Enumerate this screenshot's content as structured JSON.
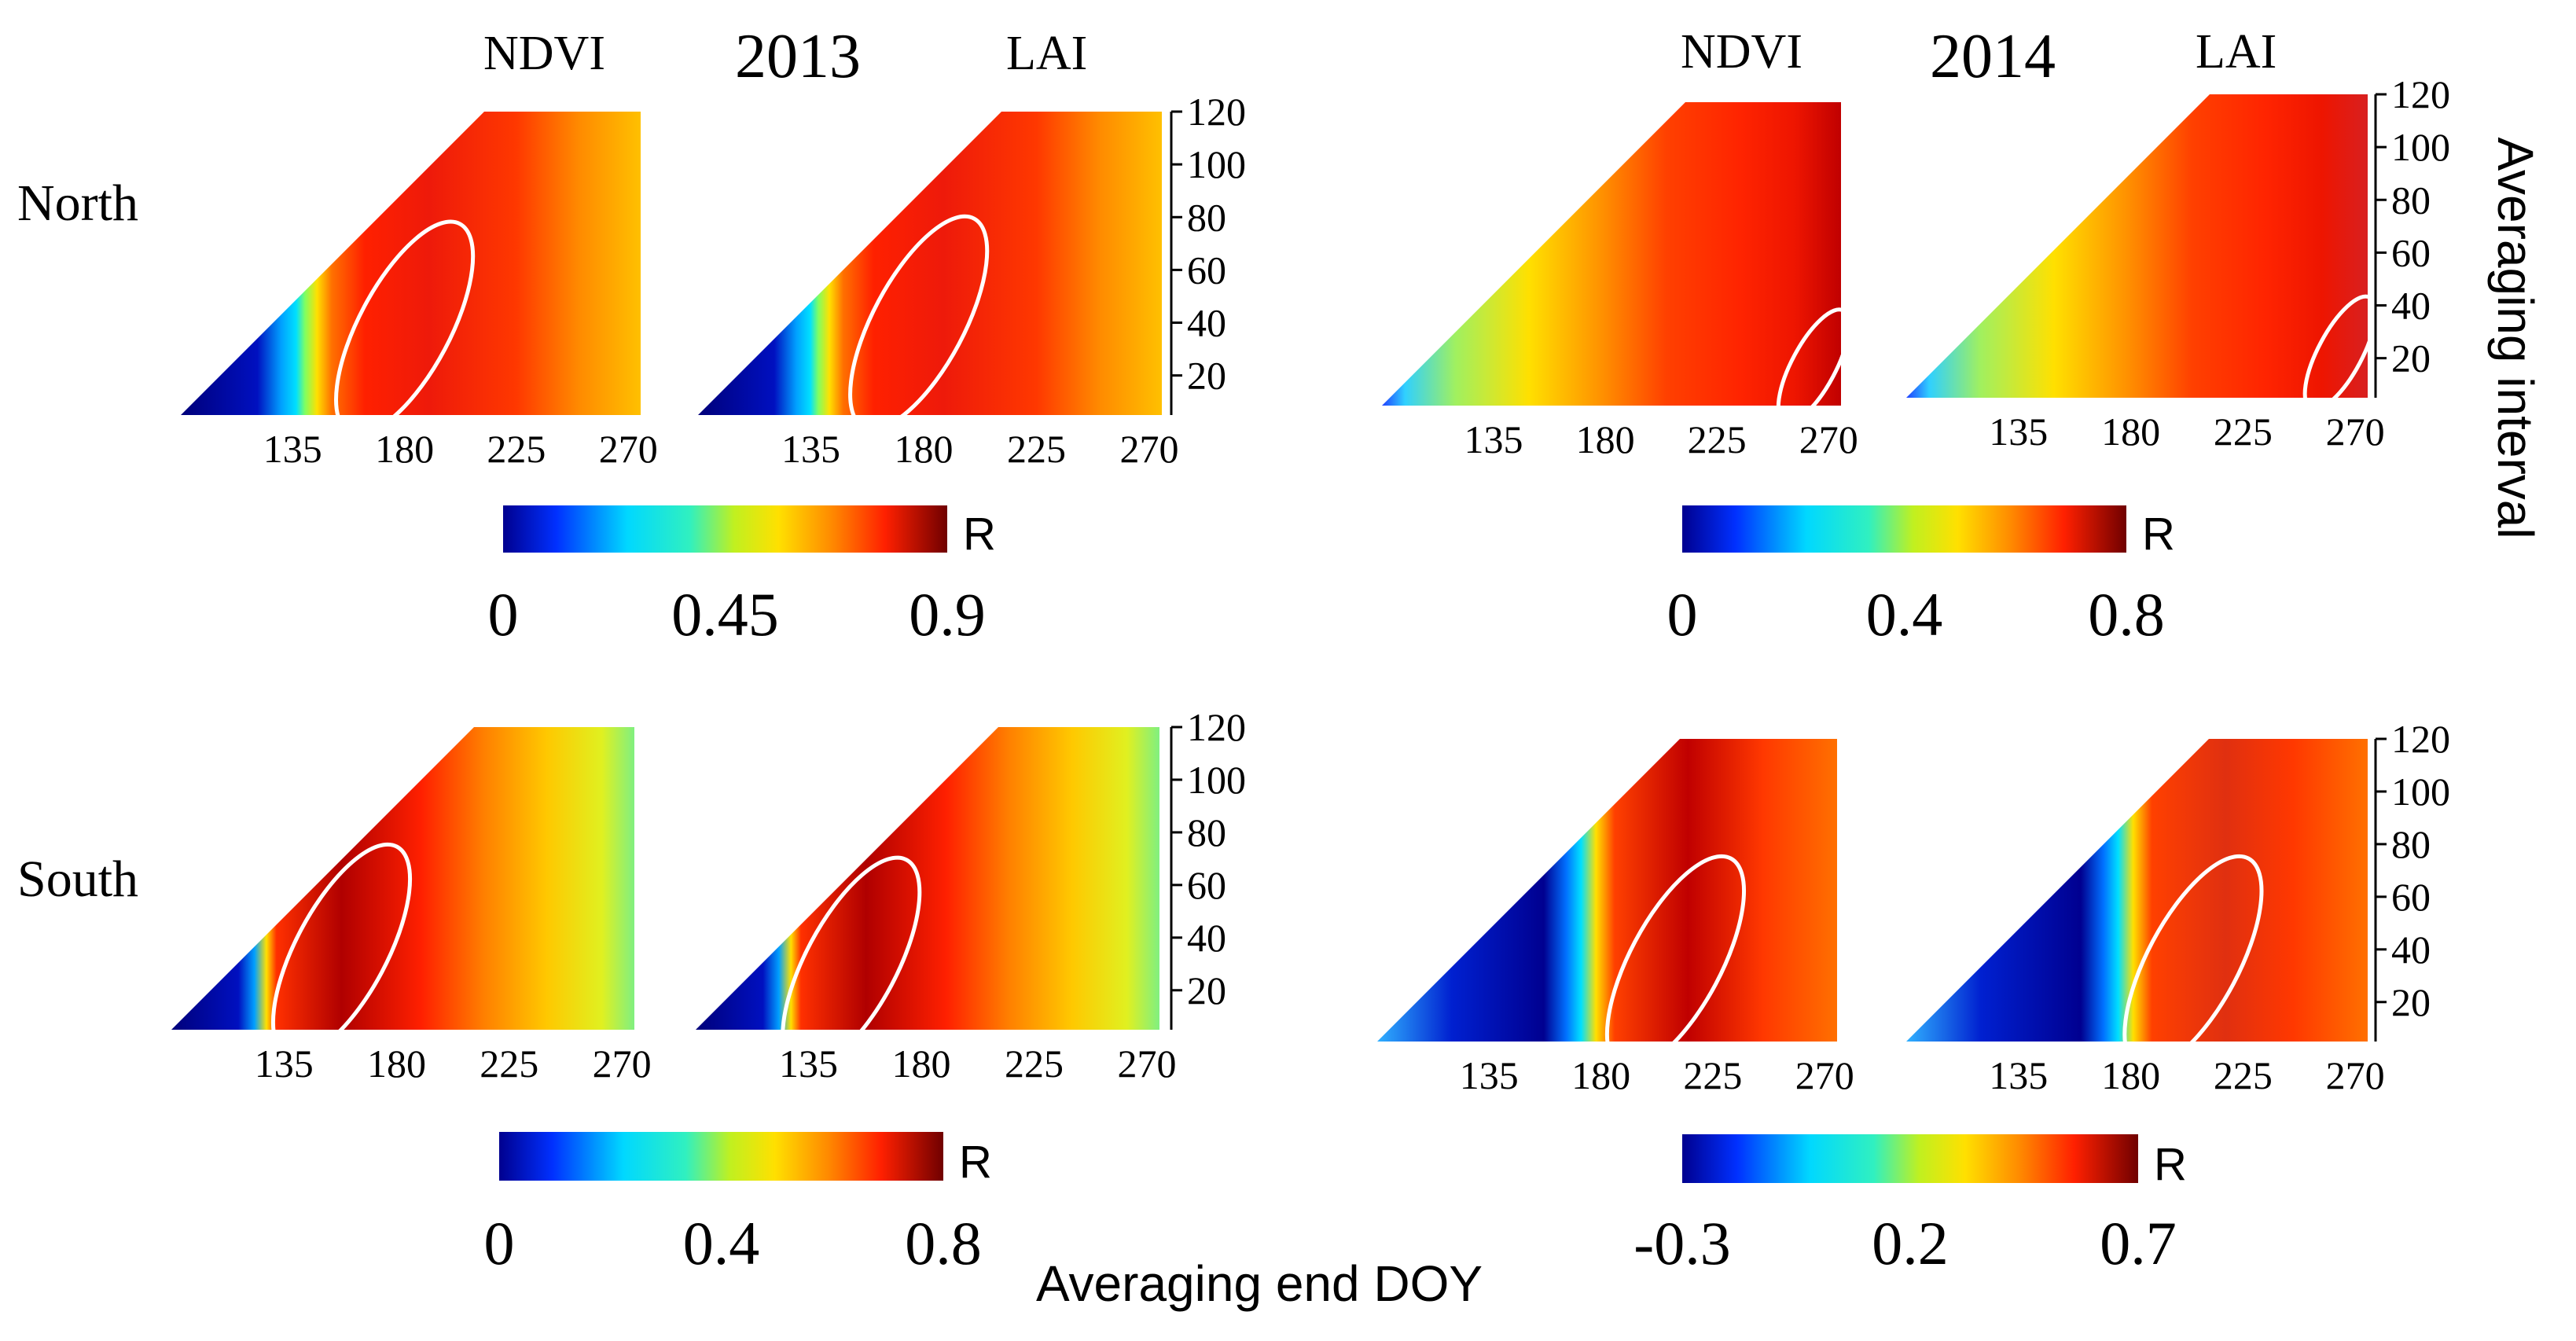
{
  "figure": {
    "row_labels": [
      "North",
      "South"
    ],
    "years": [
      "2013",
      "2014"
    ],
    "panel_labels": [
      "NDVI",
      "LAI"
    ],
    "colorbar_symbol": "R",
    "xlabel": "Averaging end  DOY",
    "ylabel": "Averaging interval"
  },
  "chart_data": [
    {
      "type": "heatmap",
      "title": "2013",
      "region": "North",
      "panels": [
        {
          "index": "NDVI",
          "x_ticks": [
            "135",
            "180",
            "225",
            "270"
          ],
          "y_ticks": [
            "20",
            "40",
            "60",
            "80",
            "100",
            "120"
          ],
          "xlim": [
            90,
            275
          ],
          "ylim": [
            5,
            120
          ],
          "band_center_doy": 140,
          "band_width": 12,
          "max_color": "#d81010",
          "ellipse": {
            "x_center_doy": 180,
            "y_center": 38,
            "description": "white ellipse"
          }
        },
        {
          "index": "LAI",
          "x_ticks": [
            "135",
            "180",
            "225",
            "270"
          ],
          "y_ticks": [
            "20",
            "40",
            "60",
            "80",
            "100",
            "120"
          ],
          "xlim": [
            90,
            275
          ],
          "ylim": [
            5,
            120
          ],
          "band_center_doy": 138,
          "band_width": 11,
          "max_color": "#d81010",
          "ellipse": {
            "x_center_doy": 178,
            "y_center": 40,
            "description": "white ellipse"
          }
        }
      ],
      "colorbar": {
        "min": 0,
        "max": 0.9,
        "ticks": [
          "0",
          "0.45",
          "0.9"
        ]
      }
    },
    {
      "type": "heatmap",
      "title": "2014",
      "region": "North",
      "panels": [
        {
          "index": "NDVI",
          "x_ticks": [
            "135",
            "180",
            "225",
            "270"
          ],
          "y_ticks": [
            "20",
            "40",
            "60",
            "80",
            "100",
            "120"
          ],
          "xlim": [
            90,
            275
          ],
          "ylim": [
            5,
            120
          ],
          "band_center_doy": 95,
          "band_width": 60,
          "max_color": "#c00000",
          "ellipse": {
            "x_center_doy": 264,
            "y_center": 20,
            "description": "white ellipse"
          }
        },
        {
          "index": "LAI",
          "x_ticks": [
            "135",
            "180",
            "225",
            "270"
          ],
          "y_ticks": [
            "20",
            "40",
            "60",
            "80",
            "100",
            "120"
          ],
          "xlim": [
            90,
            275
          ],
          "ylim": [
            5,
            120
          ],
          "band_center_doy": 100,
          "band_width": 60,
          "max_color": "#d82020",
          "ellipse": {
            "x_center_doy": 264,
            "y_center": 22,
            "description": "white ellipse"
          }
        }
      ],
      "colorbar": {
        "min": 0,
        "max": 0.8,
        "ticks": [
          "0",
          "0.4",
          "0.8"
        ]
      }
    },
    {
      "type": "heatmap",
      "title": "2013",
      "region": "South",
      "panels": [
        {
          "index": "NDVI",
          "x_ticks": [
            "135",
            "180",
            "225",
            "270"
          ],
          "y_ticks": [
            "20",
            "40",
            "60",
            "80",
            "100",
            "120"
          ],
          "xlim": [
            90,
            275
          ],
          "ylim": [
            5,
            120
          ],
          "band_center_doy": 128,
          "band_width": 8,
          "max_color": "#b00000",
          "ellipse": {
            "x_center_doy": 158,
            "y_center": 35,
            "description": "white ellipse"
          }
        },
        {
          "index": "LAI",
          "x_ticks": [
            "135",
            "180",
            "225",
            "270"
          ],
          "y_ticks": [
            "20",
            "40",
            "60",
            "80",
            "100",
            "120"
          ],
          "xlim": [
            90,
            275
          ],
          "ylim": [
            5,
            120
          ],
          "band_center_doy": 128,
          "band_width": 8,
          "max_color": "#b00000",
          "ellipse": {
            "x_center_doy": 152,
            "y_center": 30,
            "description": "white ellipse"
          }
        }
      ],
      "colorbar": {
        "min": 0,
        "max": 0.8,
        "ticks": [
          "0",
          "0.4",
          "0.8"
        ]
      }
    },
    {
      "type": "heatmap",
      "title": "2014",
      "region": "South",
      "panels": [
        {
          "index": "NDVI",
          "x_ticks": [
            "135",
            "180",
            "225",
            "270"
          ],
          "y_ticks": [
            "20",
            "40",
            "60",
            "80",
            "100",
            "120"
          ],
          "xlim": [
            90,
            275
          ],
          "ylim": [
            5,
            120
          ],
          "band_center_doy": 175,
          "band_width": 15,
          "max_color": "#c00000",
          "ellipse": {
            "x_center_doy": 210,
            "y_center": 35,
            "description": "white ellipse"
          }
        },
        {
          "index": "LAI",
          "x_ticks": [
            "135",
            "180",
            "225",
            "270"
          ],
          "y_ticks": [
            "20",
            "40",
            "60",
            "80",
            "100",
            "120"
          ],
          "xlim": [
            90,
            275
          ],
          "ylim": [
            5,
            120
          ],
          "band_center_doy": 178,
          "band_width": 15,
          "max_color": "#e03010",
          "ellipse": {
            "x_center_doy": 205,
            "y_center": 35,
            "description": "white ellipse"
          }
        }
      ],
      "colorbar": {
        "min": -0.3,
        "max": 0.7,
        "ticks": [
          "-0.3",
          "0.2",
          "0.7"
        ]
      }
    }
  ]
}
